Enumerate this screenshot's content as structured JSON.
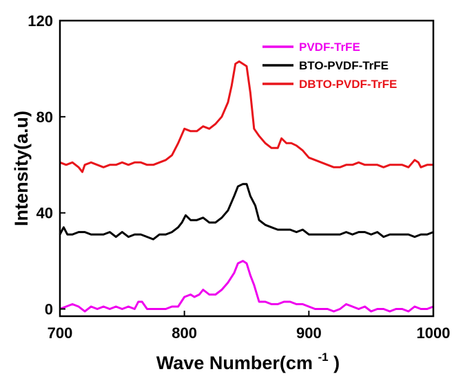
{
  "chart_data": {
    "type": "line",
    "xlabel": "Wave Number(cm",
    "xlabel_superscript": "-1",
    "xlabel_suffix": ")",
    "ylabel": "Intensity(a.u)",
    "xlim": [
      700,
      1000
    ],
    "ylim": [
      -3,
      120
    ],
    "x_ticks": [
      700,
      800,
      900,
      1000
    ],
    "x_tick_labels": [
      "700",
      "800",
      "900",
      "1000"
    ],
    "y_ticks": [
      0,
      40,
      80,
      120
    ],
    "y_tick_labels": [
      "0",
      "40",
      "80",
      "120"
    ],
    "grid": false,
    "legend_position": "top-right",
    "series": [
      {
        "name": "PVDF-TrFE",
        "color": "#ee00ee",
        "points": [
          [
            700,
            0
          ],
          [
            705,
            1
          ],
          [
            710,
            2
          ],
          [
            715,
            1
          ],
          [
            720,
            -1
          ],
          [
            725,
            1
          ],
          [
            730,
            0
          ],
          [
            735,
            1
          ],
          [
            740,
            0
          ],
          [
            745,
            1
          ],
          [
            750,
            0
          ],
          [
            755,
            1
          ],
          [
            760,
            0
          ],
          [
            763,
            3
          ],
          [
            766,
            3
          ],
          [
            770,
            0
          ],
          [
            775,
            0
          ],
          [
            780,
            0
          ],
          [
            785,
            0
          ],
          [
            790,
            1
          ],
          [
            795,
            1
          ],
          [
            800,
            5
          ],
          [
            805,
            6
          ],
          [
            808,
            5
          ],
          [
            812,
            6
          ],
          [
            815,
            8
          ],
          [
            820,
            6
          ],
          [
            825,
            6
          ],
          [
            830,
            8
          ],
          [
            835,
            11
          ],
          [
            840,
            15
          ],
          [
            843,
            19
          ],
          [
            847,
            20
          ],
          [
            850,
            19
          ],
          [
            853,
            14
          ],
          [
            856,
            10
          ],
          [
            860,
            3
          ],
          [
            865,
            3
          ],
          [
            870,
            2
          ],
          [
            875,
            2
          ],
          [
            880,
            3
          ],
          [
            885,
            3
          ],
          [
            890,
            2
          ],
          [
            895,
            2
          ],
          [
            900,
            1
          ],
          [
            905,
            0
          ],
          [
            910,
            0
          ],
          [
            915,
            0
          ],
          [
            920,
            -1
          ],
          [
            925,
            0
          ],
          [
            930,
            2
          ],
          [
            935,
            1
          ],
          [
            940,
            0
          ],
          [
            945,
            1
          ],
          [
            950,
            -1
          ],
          [
            955,
            0
          ],
          [
            960,
            0
          ],
          [
            965,
            -1
          ],
          [
            970,
            0
          ],
          [
            975,
            0
          ],
          [
            980,
            -1
          ],
          [
            985,
            1
          ],
          [
            990,
            0
          ],
          [
            995,
            0
          ],
          [
            1000,
            1
          ]
        ]
      },
      {
        "name": "BTO-PVDF-TrFE",
        "color": "#000000",
        "points": [
          [
            700,
            31
          ],
          [
            703,
            34
          ],
          [
            706,
            31
          ],
          [
            710,
            31
          ],
          [
            715,
            32
          ],
          [
            720,
            32
          ],
          [
            725,
            31
          ],
          [
            730,
            31
          ],
          [
            735,
            31
          ],
          [
            740,
            32
          ],
          [
            745,
            30
          ],
          [
            750,
            32
          ],
          [
            755,
            30
          ],
          [
            760,
            31
          ],
          [
            765,
            31
          ],
          [
            770,
            30
          ],
          [
            775,
            29
          ],
          [
            780,
            31
          ],
          [
            785,
            31
          ],
          [
            790,
            32
          ],
          [
            795,
            34
          ],
          [
            798,
            36
          ],
          [
            801,
            39
          ],
          [
            805,
            37
          ],
          [
            810,
            37
          ],
          [
            815,
            38
          ],
          [
            820,
            36
          ],
          [
            825,
            36
          ],
          [
            830,
            38
          ],
          [
            835,
            41
          ],
          [
            840,
            47
          ],
          [
            843,
            51
          ],
          [
            847,
            52
          ],
          [
            850,
            52
          ],
          [
            853,
            47
          ],
          [
            857,
            43
          ],
          [
            860,
            37
          ],
          [
            865,
            35
          ],
          [
            870,
            34
          ],
          [
            875,
            33
          ],
          [
            880,
            33
          ],
          [
            885,
            33
          ],
          [
            890,
            32
          ],
          [
            895,
            33
          ],
          [
            900,
            31
          ],
          [
            905,
            31
          ],
          [
            910,
            31
          ],
          [
            915,
            31
          ],
          [
            920,
            31
          ],
          [
            925,
            31
          ],
          [
            930,
            32
          ],
          [
            935,
            31
          ],
          [
            940,
            32
          ],
          [
            945,
            32
          ],
          [
            950,
            31
          ],
          [
            955,
            32
          ],
          [
            960,
            30
          ],
          [
            965,
            31
          ],
          [
            970,
            31
          ],
          [
            975,
            31
          ],
          [
            980,
            31
          ],
          [
            985,
            30
          ],
          [
            990,
            31
          ],
          [
            995,
            31
          ],
          [
            1000,
            32
          ]
        ]
      },
      {
        "name": "DBTO-PVDF-TrFE",
        "color": "#e8151b",
        "points": [
          [
            700,
            61
          ],
          [
            705,
            60
          ],
          [
            710,
            61
          ],
          [
            715,
            59
          ],
          [
            718,
            57
          ],
          [
            720,
            60
          ],
          [
            725,
            61
          ],
          [
            730,
            60
          ],
          [
            735,
            59
          ],
          [
            740,
            60
          ],
          [
            745,
            60
          ],
          [
            750,
            61
          ],
          [
            755,
            60
          ],
          [
            760,
            61
          ],
          [
            765,
            61
          ],
          [
            770,
            60
          ],
          [
            775,
            60
          ],
          [
            780,
            61
          ],
          [
            785,
            62
          ],
          [
            790,
            64
          ],
          [
            795,
            69
          ],
          [
            800,
            75
          ],
          [
            805,
            74
          ],
          [
            810,
            74
          ],
          [
            815,
            76
          ],
          [
            820,
            75
          ],
          [
            825,
            77
          ],
          [
            830,
            80
          ],
          [
            835,
            86
          ],
          [
            838,
            93
          ],
          [
            841,
            102
          ],
          [
            844,
            103
          ],
          [
            847,
            102
          ],
          [
            850,
            101
          ],
          [
            853,
            90
          ],
          [
            856,
            75
          ],
          [
            860,
            72
          ],
          [
            865,
            69
          ],
          [
            870,
            67
          ],
          [
            875,
            67
          ],
          [
            878,
            71
          ],
          [
            882,
            69
          ],
          [
            886,
            69
          ],
          [
            890,
            68
          ],
          [
            895,
            66
          ],
          [
            900,
            63
          ],
          [
            905,
            62
          ],
          [
            910,
            61
          ],
          [
            915,
            60
          ],
          [
            920,
            59
          ],
          [
            925,
            59
          ],
          [
            930,
            60
          ],
          [
            935,
            60
          ],
          [
            940,
            61
          ],
          [
            945,
            60
          ],
          [
            950,
            60
          ],
          [
            955,
            60
          ],
          [
            960,
            59
          ],
          [
            965,
            60
          ],
          [
            970,
            60
          ],
          [
            975,
            60
          ],
          [
            980,
            59
          ],
          [
            985,
            62
          ],
          [
            988,
            61
          ],
          [
            990,
            59
          ],
          [
            995,
            60
          ],
          [
            1000,
            60
          ]
        ]
      }
    ]
  }
}
